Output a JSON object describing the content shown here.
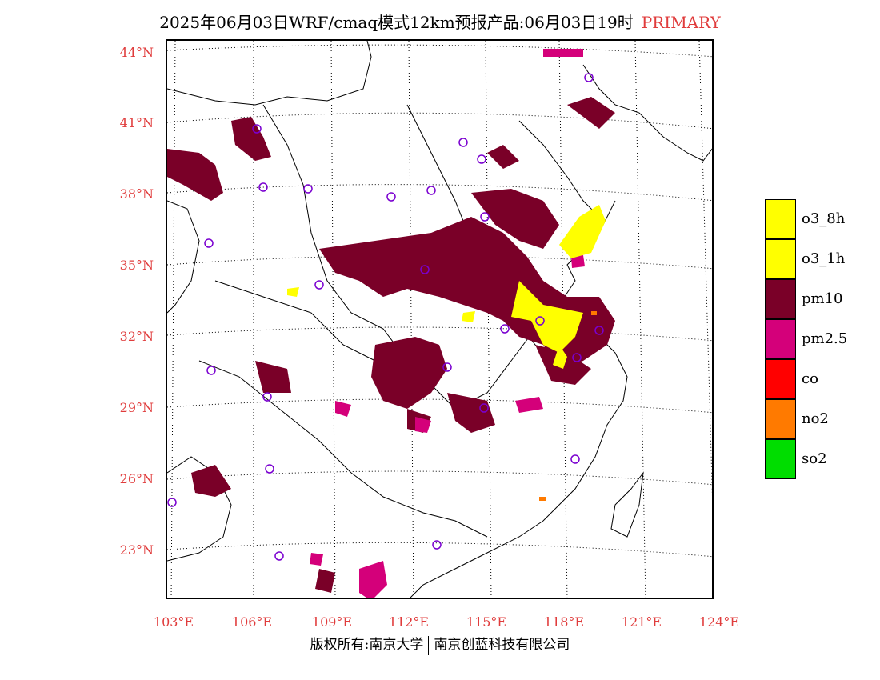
{
  "title": {
    "main": "2025年06月03日WRF/cmaq模式12km预报产品:06月03日19时",
    "tag": "PRIMARY"
  },
  "axes": {
    "lat_labels": [
      "44°N",
      "41°N",
      "38°N",
      "35°N",
      "32°N",
      "29°N",
      "26°N",
      "23°N"
    ],
    "lon_labels": [
      "103°E",
      "106°E",
      "109°E",
      "112°E",
      "115°E",
      "118°E",
      "121°E",
      "124°E"
    ]
  },
  "legend": [
    {
      "label": "o3_8h",
      "color": "#ffff00"
    },
    {
      "label": "o3_1h",
      "color": "#ffff00"
    },
    {
      "label": "pm10",
      "color": "#7a0028"
    },
    {
      "label": "pm2.5",
      "color": "#d4007a"
    },
    {
      "label": "co",
      "color": "#ff0000"
    },
    {
      "label": "no2",
      "color": "#ff7a00"
    },
    {
      "label": "so2",
      "color": "#00dd00"
    }
  ],
  "footer": {
    "left": "版权所有:南京大学",
    "right": "南京创蓝科技有限公司"
  },
  "colors": {
    "axis_label": "#e03c3c",
    "station_marker": "#7a00d0"
  }
}
